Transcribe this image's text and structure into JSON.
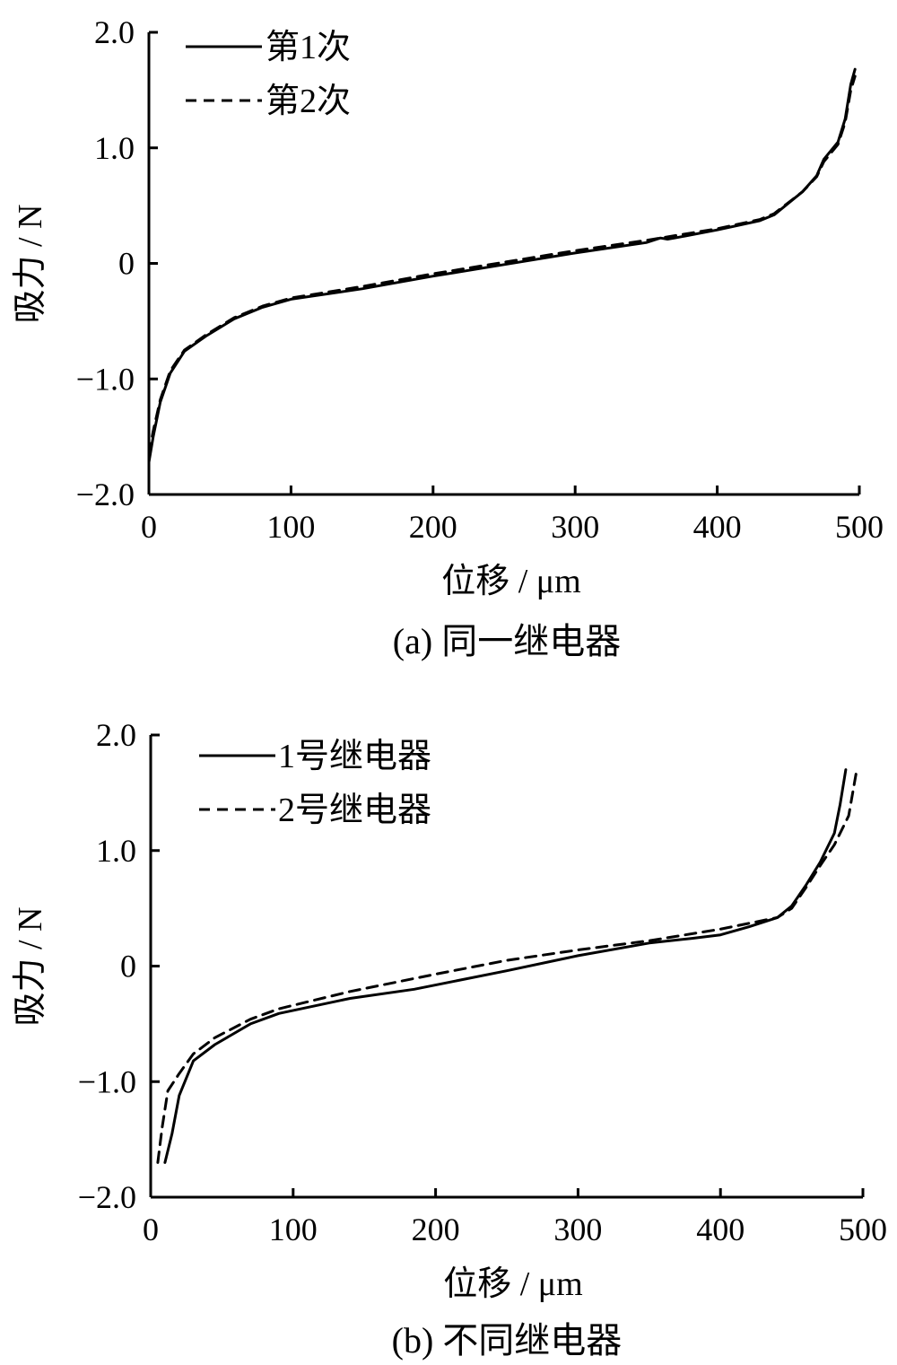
{
  "chart_data": [
    {
      "type": "line",
      "caption": "(a)  同一继电器",
      "xlabel": "位移 / μm",
      "ylabel": "吸力 / N",
      "xlim": [
        0,
        500
      ],
      "ylim": [
        -2.0,
        2.0
      ],
      "xticks": [
        0,
        100,
        200,
        300,
        400,
        500
      ],
      "xtick_labels": [
        "0",
        "100",
        "200",
        "300",
        "400",
        "500"
      ],
      "yticks": [
        -2.0,
        -1.0,
        0,
        1.0,
        2.0
      ],
      "ytick_labels": [
        "−2.0",
        "−1.0",
        "0",
        "1.0",
        "2.0"
      ],
      "grid": false,
      "legend_position": "top-left",
      "series": [
        {
          "name": "第1次",
          "style": "solid",
          "x": [
            0,
            3,
            8,
            15,
            25,
            40,
            60,
            80,
            100,
            150,
            200,
            250,
            300,
            350,
            360,
            365,
            370,
            400,
            430,
            440,
            460,
            470,
            475,
            485,
            490,
            494,
            497
          ],
          "y": [
            -1.72,
            -1.5,
            -1.2,
            -0.95,
            -0.76,
            -0.63,
            -0.48,
            -0.38,
            -0.31,
            -0.22,
            -0.11,
            -0.01,
            0.09,
            0.18,
            0.22,
            0.21,
            0.22,
            0.29,
            0.37,
            0.42,
            0.62,
            0.76,
            0.9,
            1.05,
            1.25,
            1.55,
            1.68
          ]
        },
        {
          "name": "第2次",
          "style": "dashed",
          "x": [
            0,
            3,
            8,
            15,
            25,
            40,
            60,
            80,
            100,
            150,
            200,
            250,
            300,
            350,
            400,
            430,
            440,
            460,
            470,
            475,
            485,
            490,
            494,
            497
          ],
          "y": [
            -1.65,
            -1.45,
            -1.18,
            -0.93,
            -0.75,
            -0.62,
            -0.47,
            -0.37,
            -0.3,
            -0.2,
            -0.09,
            0.01,
            0.11,
            0.2,
            0.3,
            0.38,
            0.43,
            0.62,
            0.75,
            0.88,
            1.03,
            1.22,
            1.5,
            1.62
          ]
        }
      ]
    },
    {
      "type": "line",
      "caption": "(b)  不同继电器",
      "xlabel": "位移 / μm",
      "ylabel": "吸力 / N",
      "xlim": [
        0,
        500
      ],
      "ylim": [
        -2.0,
        2.0
      ],
      "xticks": [
        0,
        100,
        200,
        300,
        400,
        500
      ],
      "xtick_labels": [
        "0",
        "100",
        "200",
        "300",
        "400",
        "500"
      ],
      "yticks": [
        -2.0,
        -1.0,
        0,
        1.0,
        2.0
      ],
      "ytick_labels": [
        "−2.0",
        "−1.0",
        "0",
        "1.0",
        "2.0"
      ],
      "grid": false,
      "legend_position": "top-left",
      "series": [
        {
          "name": "1号继电器",
          "style": "solid",
          "x": [
            10,
            15,
            20,
            30,
            45,
            70,
            90,
            140,
            185,
            250,
            300,
            350,
            380,
            400,
            420,
            440,
            450,
            460,
            470,
            480,
            484,
            488
          ],
          "y": [
            -1.7,
            -1.45,
            -1.12,
            -0.82,
            -0.68,
            -0.5,
            -0.41,
            -0.28,
            -0.2,
            -0.04,
            0.09,
            0.2,
            0.24,
            0.27,
            0.34,
            0.42,
            0.52,
            0.7,
            0.9,
            1.15,
            1.4,
            1.7
          ]
        },
        {
          "name": "2号继电器",
          "style": "dashed",
          "x": [
            5,
            8,
            12,
            20,
            30,
            45,
            70,
            90,
            140,
            200,
            250,
            300,
            350,
            400,
            440,
            450,
            460,
            470,
            480,
            490,
            496
          ],
          "y": [
            -1.7,
            -1.4,
            -1.08,
            -0.93,
            -0.76,
            -0.62,
            -0.46,
            -0.37,
            -0.22,
            -0.07,
            0.05,
            0.14,
            0.22,
            0.32,
            0.42,
            0.5,
            0.68,
            0.87,
            1.05,
            1.3,
            1.72
          ]
        }
      ]
    }
  ]
}
